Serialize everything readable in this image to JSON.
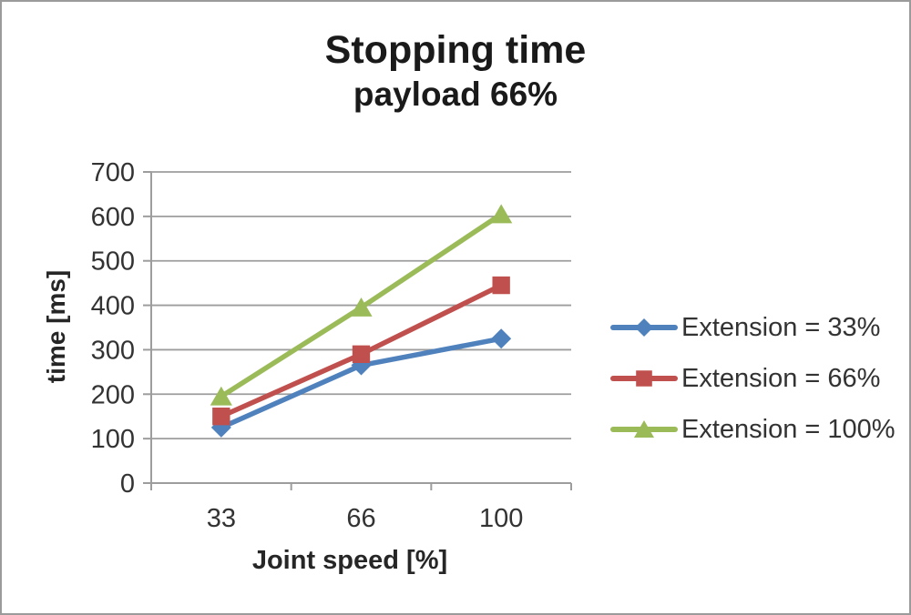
{
  "title": "Stopping time",
  "subtitle": "payload 66%",
  "chart_data": {
    "type": "line",
    "categories": [
      "33",
      "66",
      "100"
    ],
    "series": [
      {
        "name": "Extension = 33%",
        "marker": "diamond",
        "color": "#4f81bd",
        "values": [
          125,
          265,
          325
        ]
      },
      {
        "name": "Extension = 66%",
        "marker": "square",
        "color": "#c0504d",
        "values": [
          150,
          290,
          445
        ]
      },
      {
        "name": "Extension = 100%",
        "marker": "triangle",
        "color": "#9bbb59",
        "values": [
          195,
          395,
          605
        ]
      }
    ],
    "xlabel": "Joint speed [%]",
    "ylabel": "time [ms]",
    "ylim": [
      0,
      700
    ],
    "y_tick_step": 100,
    "y_tick_labels": [
      "0",
      "100",
      "200",
      "300",
      "400",
      "500",
      "600",
      "700"
    ],
    "grid": true,
    "legend_position": "right"
  },
  "colors": {
    "grid": "#9d9d9d",
    "axis": "#9d9d9d",
    "tick_label": "#333333",
    "text": "#262626",
    "background": "#ffffff",
    "frame_border": "#9b9b9b"
  }
}
